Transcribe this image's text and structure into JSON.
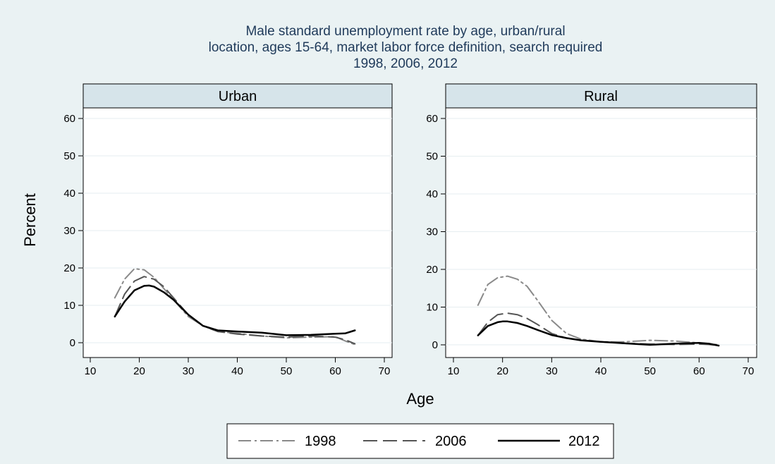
{
  "chart_data": {
    "type": "line",
    "title_lines": [
      "Male standard unemployment rate by age, urban/rural",
      "location, ages 15-64, market labor force definition, search required",
      "1998, 2006, 2012"
    ],
    "xlabel": "Age",
    "ylabel": "Percent",
    "xlim": [
      10,
      70
    ],
    "ylim": [
      0,
      60
    ],
    "xticks": [
      10,
      20,
      30,
      40,
      50,
      60,
      70
    ],
    "yticks": [
      0,
      10,
      20,
      30,
      40,
      50,
      60
    ],
    "grid": true,
    "legend_position": "bottom",
    "legend": [
      {
        "label": "1998",
        "color": "#8a8a8a",
        "dash": "dash-dot"
      },
      {
        "label": "2006",
        "color": "#555555",
        "dash": "long-dash"
      },
      {
        "label": "2012",
        "color": "#000000",
        "dash": "solid"
      }
    ],
    "panels": [
      {
        "label": "Urban",
        "series": [
          {
            "name": "1998",
            "x": [
              15,
              17,
              19,
              21,
              23,
              25,
              27,
              30,
              33,
              36,
              40,
              45,
              50,
              55,
              60,
              62,
              64
            ],
            "y": [
              12,
              17,
              19.8,
              19.5,
              17.5,
              14.5,
              11.5,
              7,
              4.5,
              3,
              2.5,
              1.8,
              1.3,
              1.5,
              1.6,
              0.5,
              -0.5
            ]
          },
          {
            "name": "2006",
            "x": [
              15,
              17,
              19,
              21,
              23,
              25,
              27,
              30,
              33,
              36,
              40,
              45,
              50,
              55,
              60,
              62,
              64
            ],
            "y": [
              7,
              13,
              16.5,
              17.7,
              17,
              15,
              12,
              7.5,
              4.5,
              3,
              2.3,
              1.8,
              1.5,
              1.8,
              1.5,
              0.8,
              -0.3
            ]
          },
          {
            "name": "2012",
            "x": [
              15,
              17,
              19,
              21,
              22,
              23,
              25,
              27,
              30,
              33,
              36,
              40,
              45,
              50,
              55,
              60,
              62,
              64
            ],
            "y": [
              7,
              11,
              14,
              15.2,
              15.3,
              15,
              13.5,
              11.5,
              7.5,
              4.5,
              3.3,
              3,
              2.7,
              2,
              2.1,
              2.4,
              2.5,
              3.3
            ]
          }
        ]
      },
      {
        "label": "Rural",
        "series": [
          {
            "name": "1998",
            "x": [
              15,
              17,
              19,
              21,
              23,
              25,
              27,
              30,
              33,
              36,
              40,
              45,
              50,
              55,
              60,
              62,
              64
            ],
            "y": [
              10.5,
              16,
              17.8,
              18.2,
              17.4,
              15.5,
              12,
              6.5,
              3,
              1.5,
              0.8,
              0.8,
              1.2,
              1,
              0.5,
              0.3,
              0
            ]
          },
          {
            "name": "2006",
            "x": [
              15,
              17,
              19,
              21,
              23,
              25,
              27,
              30,
              33,
              36,
              40,
              45,
              50,
              55,
              60,
              62,
              64
            ],
            "y": [
              2.5,
              6,
              8,
              8.4,
              8,
              7,
              5.5,
              3,
              1.8,
              1.2,
              0.8,
              0.4,
              0.2,
              0.1,
              0.2,
              0.1,
              -0.2
            ]
          },
          {
            "name": "2012",
            "x": [
              15,
              17,
              19,
              20,
              21,
              23,
              25,
              27,
              30,
              33,
              36,
              40,
              45,
              50,
              55,
              60,
              62,
              64
            ],
            "y": [
              2.5,
              5,
              6,
              6.2,
              6.2,
              5.8,
              5,
              4,
              2.6,
              1.8,
              1.2,
              0.8,
              0.4,
              0,
              0.3,
              0.5,
              0.3,
              -0.2
            ]
          }
        ]
      }
    ]
  }
}
